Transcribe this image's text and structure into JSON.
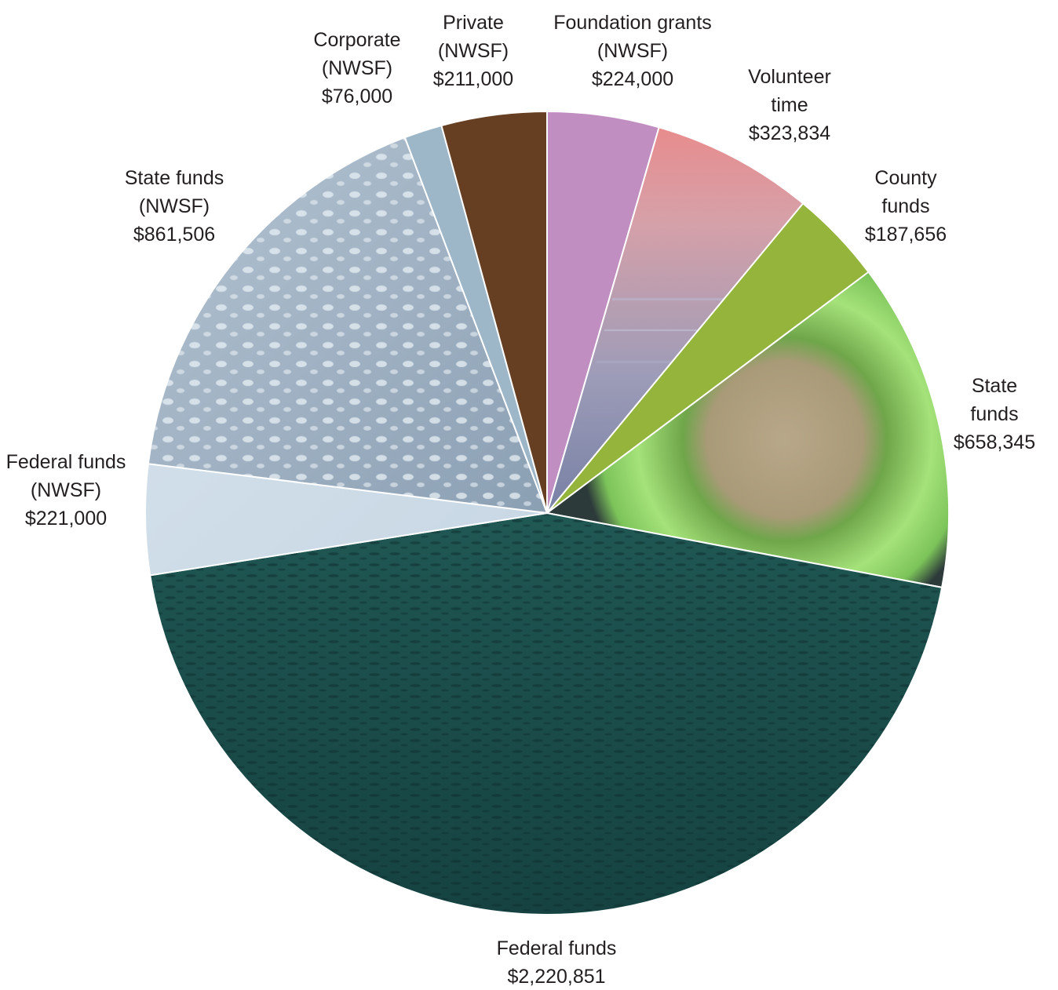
{
  "chart_data": {
    "type": "pie",
    "title": "",
    "start_angle_deg": 0,
    "direction": "clockwise",
    "slices": [
      {
        "label": [
          "Foundation grants",
          "(NWSF)",
          "$224,000"
        ],
        "value": 224000,
        "color": "#c18ec2",
        "fill_style": "solid"
      },
      {
        "label": [
          "Volunteer",
          "time",
          "$323,834"
        ],
        "value": 323834,
        "color": "#9a8fa6",
        "fill_style": "photo-sunset-shore"
      },
      {
        "label": [
          "County",
          "funds",
          "$187,656"
        ],
        "value": 187656,
        "color": "#94b43c",
        "fill_style": "solid"
      },
      {
        "label": [
          "State",
          "funds",
          "$658,345"
        ],
        "value": 658345,
        "color": "#8fd36a",
        "fill_style": "photo-sea-anemone"
      },
      {
        "label": [
          "Federal funds",
          "$2,220,851"
        ],
        "value": 2220851,
        "color": "#1c5a55",
        "fill_style": "photo-kelp-fish"
      },
      {
        "label": [
          "Federal funds",
          "(NWSF)",
          "$221,000"
        ],
        "value": 221000,
        "color": "#c9dbe8",
        "fill_style": "photo-pale-water"
      },
      {
        "label": [
          "State funds",
          "(NWSF)",
          "$861,506"
        ],
        "value": 861506,
        "color": "#8fa3b8",
        "fill_style": "photo-foam-water"
      },
      {
        "label": [
          "Corporate",
          "(NWSF)",
          "$76,000"
        ],
        "value": 76000,
        "color": "#9db7c9",
        "fill_style": "solid"
      },
      {
        "label": [
          "Private",
          "(NWSF)",
          "$211,000"
        ],
        "value": 211000,
        "color": "#663f22",
        "fill_style": "solid"
      }
    ]
  }
}
